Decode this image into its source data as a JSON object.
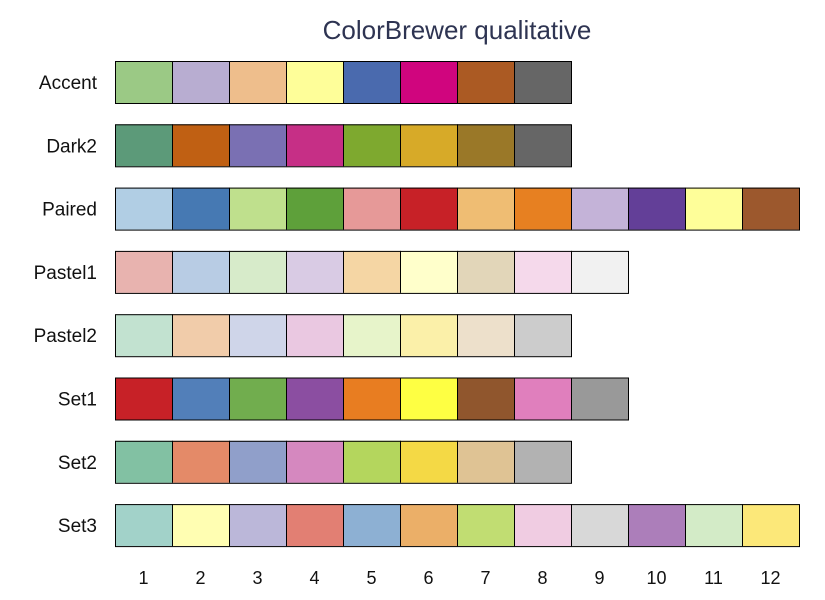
{
  "chart_data": {
    "type": "heatmap",
    "title": "ColorBrewer qualitative",
    "xticks": [
      "1",
      "2",
      "3",
      "4",
      "5",
      "6",
      "7",
      "8",
      "9",
      "10",
      "11",
      "12"
    ],
    "palettes": [
      {
        "name": "Accent",
        "colors": [
          "#9BC985",
          "#B8ADD1",
          "#EEBE8C",
          "#FEFE99",
          "#4A6AAE",
          "#D0057E",
          "#AB5A23",
          "#666666"
        ]
      },
      {
        "name": "Dark2",
        "colors": [
          "#5C9A79",
          "#C06013",
          "#7A70B3",
          "#C62F86",
          "#7EA92F",
          "#D7AA28",
          "#9A7828",
          "#666666"
        ]
      },
      {
        "name": "Paired",
        "colors": [
          "#B1CEE4",
          "#4679B3",
          "#BFE08D",
          "#5EA03A",
          "#E69998",
          "#C72127",
          "#EFBD73",
          "#E78021",
          "#C4B3D8",
          "#633F98",
          "#FEFE99",
          "#9C582D"
        ]
      },
      {
        "name": "Pastel1",
        "colors": [
          "#E8B3AF",
          "#B8CCE4",
          "#D7EBCA",
          "#D9CBE4",
          "#F5D6A4",
          "#FFFFCB",
          "#E2D6B9",
          "#F5D9EB",
          "#F1F1F1"
        ]
      },
      {
        "name": "Pastel2",
        "colors": [
          "#C2E2D0",
          "#F1CCAA",
          "#CFD5E9",
          "#EAC8E1",
          "#E7F4CA",
          "#FBF0A9",
          "#EDE0CB",
          "#CCCCCC"
        ]
      },
      {
        "name": "Set1",
        "colors": [
          "#C72127",
          "#527FB9",
          "#71AD4E",
          "#8B4EA1",
          "#E87D21",
          "#FEFF43",
          "#90562D",
          "#E07FBD",
          "#999999"
        ]
      },
      {
        "name": "Set2",
        "colors": [
          "#82C1A3",
          "#E48A68",
          "#909FCA",
          "#D588BF",
          "#B4D65D",
          "#F4D945",
          "#DFC394",
          "#B2B2B2"
        ]
      },
      {
        "name": "Set3",
        "colors": [
          "#A2D2C9",
          "#FFFEB2",
          "#BBB7D9",
          "#E27F73",
          "#8DB0D3",
          "#EBAF68",
          "#C1DD72",
          "#F0CCE2",
          "#D8D8D8",
          "#AC7EBA",
          "#D3EBC7",
          "#FCE879"
        ]
      }
    ]
  }
}
